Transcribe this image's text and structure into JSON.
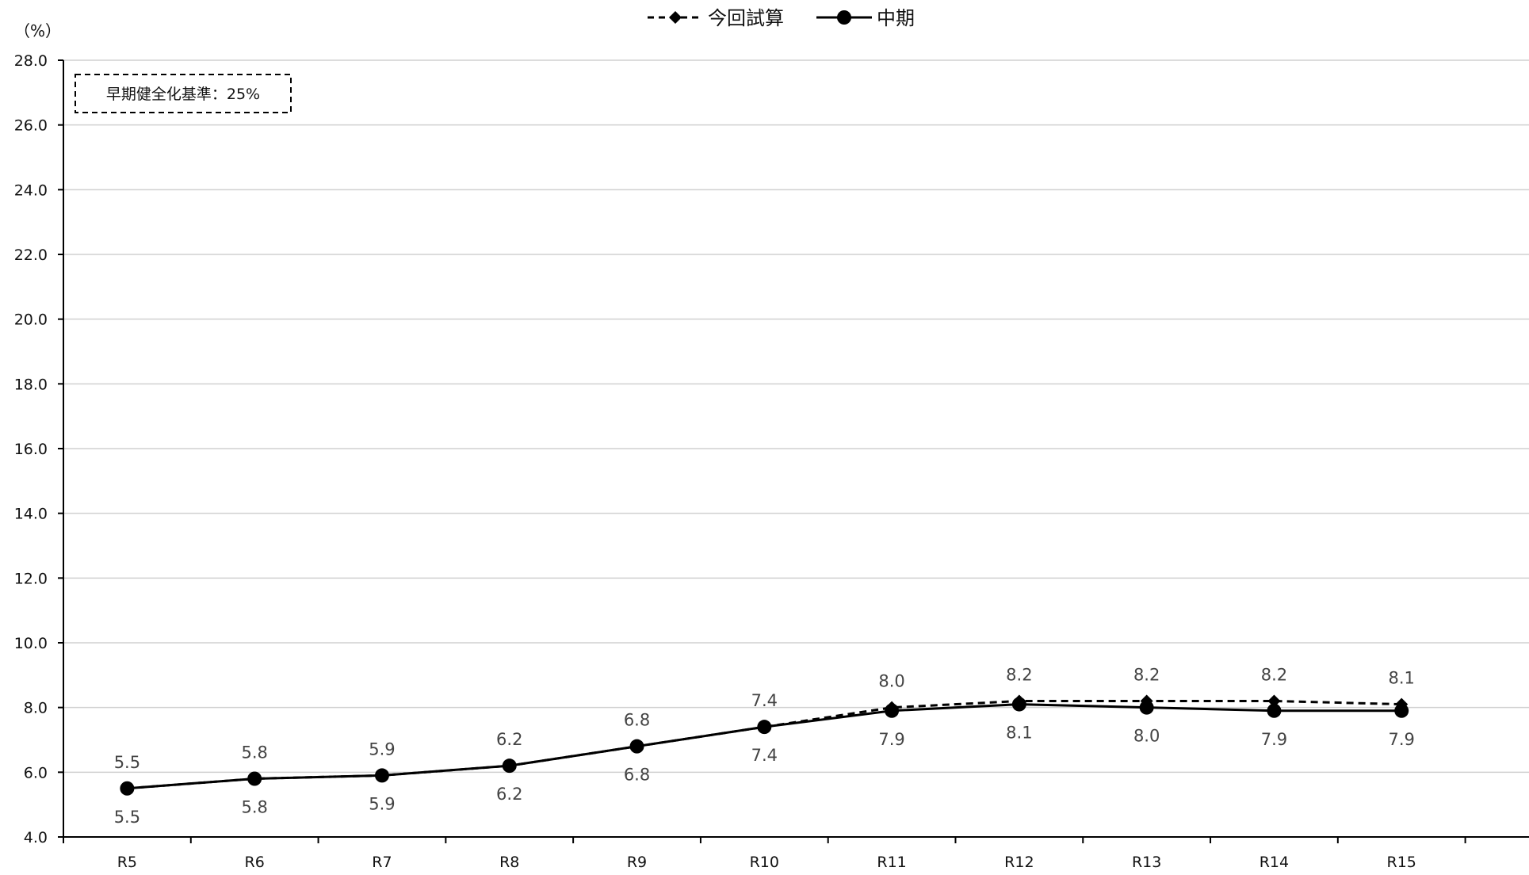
{
  "chart_data": {
    "type": "line",
    "unit_label": "（%）",
    "categories": [
      "R5",
      "R6",
      "R7",
      "R8",
      "R9",
      "R10",
      "R11",
      "R12",
      "R13",
      "R14",
      "R15"
    ],
    "ylim": [
      4.0,
      28.0
    ],
    "yticks": [
      "4.0",
      "6.0",
      "8.0",
      "10.0",
      "12.0",
      "14.0",
      "16.0",
      "18.0",
      "20.0",
      "22.0",
      "24.0",
      "26.0",
      "28.0"
    ],
    "grid": true,
    "legend_position": "top-center",
    "annotation": "早期健全化基準：25%",
    "series": [
      {
        "name": "今回試算",
        "style": "dashed",
        "marker": "diamond",
        "color": "#000000",
        "values": [
          5.5,
          5.8,
          5.9,
          6.2,
          6.8,
          7.4,
          8.0,
          8.2,
          8.2,
          8.2,
          8.1
        ],
        "labels": [
          "5.5",
          "5.8",
          "5.9",
          "6.2",
          "6.8",
          "7.4",
          "8.0",
          "8.2",
          "8.2",
          "8.2",
          "8.1"
        ]
      },
      {
        "name": "中期",
        "style": "solid",
        "marker": "circle",
        "color": "#000000",
        "values": [
          5.5,
          5.8,
          5.9,
          6.2,
          6.8,
          7.4,
          7.9,
          8.1,
          8.0,
          7.9,
          7.9
        ],
        "labels": [
          "5.5",
          "5.8",
          "5.9",
          "6.2",
          "6.8",
          "7.4",
          "7.9",
          "8.1",
          "8.0",
          "7.9",
          "7.9"
        ]
      }
    ]
  }
}
